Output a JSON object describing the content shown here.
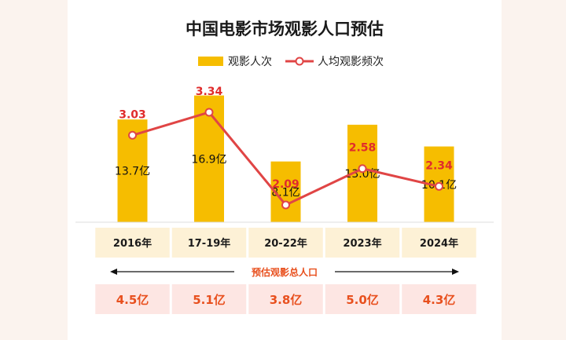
{
  "chart_data": {
    "type": "bar+line",
    "title": "中国电影市场观影人口预估",
    "categories": [
      "2016年",
      "17-19年",
      "20-22年",
      "2023年",
      "2024年"
    ],
    "series": [
      {
        "name": "观影人次",
        "type": "bar",
        "values": [
          13.7,
          16.9,
          8.1,
          13.0,
          10.1
        ],
        "labels": [
          "13.7亿",
          "16.9亿",
          "8.1亿",
          "13.0亿",
          "10.1亿"
        ],
        "color": "#f6bd00"
      },
      {
        "name": "人均观影频次",
        "type": "line",
        "values": [
          3.03,
          3.34,
          2.09,
          2.58,
          2.34
        ],
        "labels": [
          "3.03",
          "3.34",
          "2.09",
          "2.58",
          "2.34"
        ],
        "color": "#e04545"
      }
    ],
    "summary_row": {
      "caption": "预估观影总人口",
      "values": [
        4.5,
        5.1,
        3.8,
        5.0,
        4.3
      ],
      "labels": [
        "4.5亿",
        "5.1亿",
        "3.8亿",
        "5.0亿",
        "4.3亿"
      ]
    },
    "legend_position": "top-center",
    "grid": false
  },
  "colors": {
    "bar": "#f6bd00",
    "line": "#e04545",
    "line_label": "#e02c2c",
    "category_band": "#fdf1d6",
    "total_band": "#fde6e3",
    "total_text": "#e8501e",
    "page_bg": "#fbf3ee"
  }
}
